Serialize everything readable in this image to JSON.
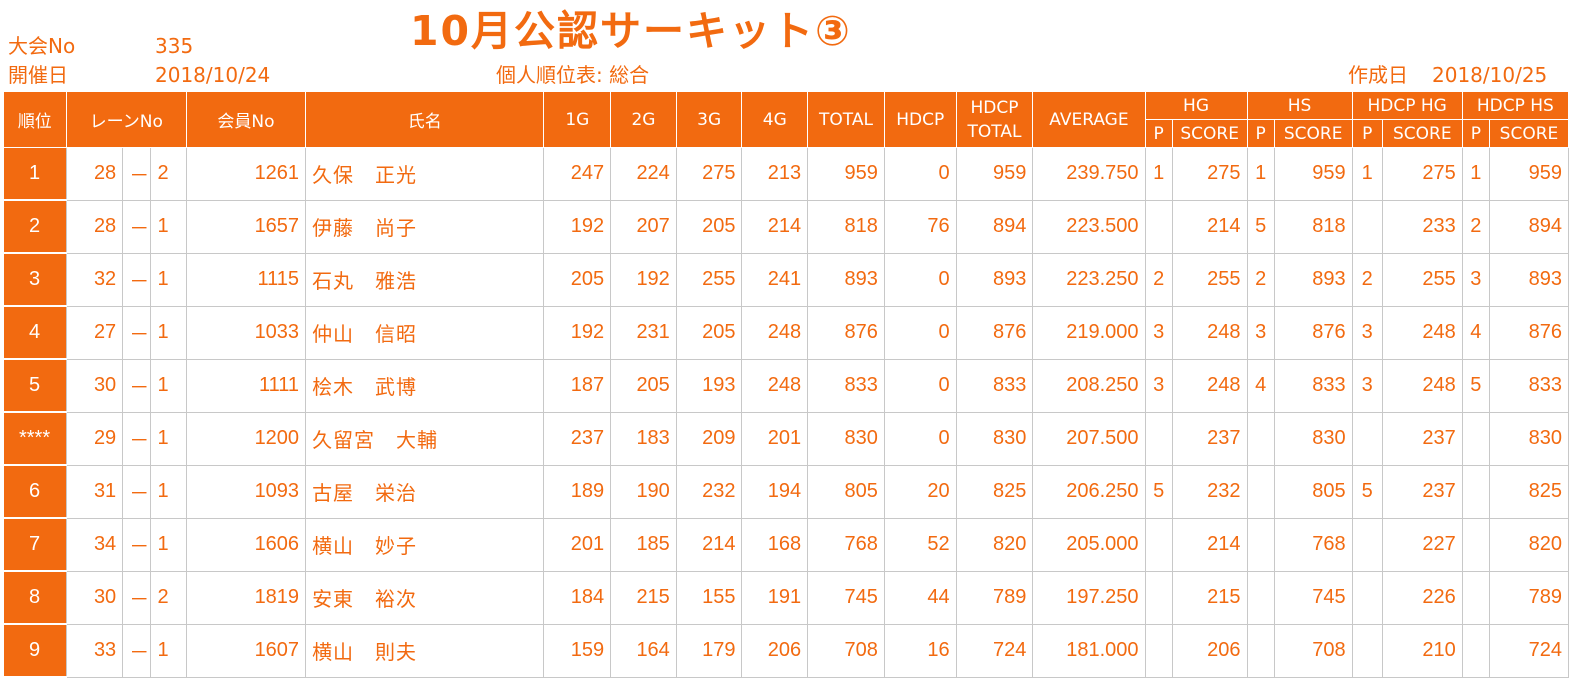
{
  "title": "10月公認サーキット③",
  "meta": {
    "tournament_label": "大会No",
    "tournament_no": "335",
    "date_label": "開催日",
    "date": "2018/10/24",
    "report_label": "個人順位表: 総合",
    "created_label": "作成日",
    "created_date": "2018/10/25"
  },
  "headers": {
    "rank": "順位",
    "lane": "レーンNo",
    "member": "会員No",
    "name": "氏名",
    "g1": "1G",
    "g2": "2G",
    "g3": "3G",
    "g4": "4G",
    "total": "TOTAL",
    "hdcp": "HDCP",
    "hdcp_total_1": "HDCP",
    "hdcp_total_2": "TOTAL",
    "average": "AVERAGE",
    "hg": "HG",
    "hs": "HS",
    "hdcp_hg": "HDCP HG",
    "hdcp_hs": "HDCP HS",
    "p": "P",
    "score": "SCORE"
  },
  "rows": [
    {
      "rank": "1",
      "lane_a": "28",
      "dash": "－",
      "lane_b": "2",
      "member": "1261",
      "name": "久保　正光",
      "g1": "247",
      "g2": "224",
      "g3": "275",
      "g4": "213",
      "total": "959",
      "hdcp": "0",
      "hdcp_total": "959",
      "average": "239.750",
      "hg_p": "1",
      "hg_score": "275",
      "hs_p": "1",
      "hs_score": "959",
      "hhg_p": "1",
      "hhg_score": "275",
      "hhs_p": "1",
      "hhs_score": "959"
    },
    {
      "rank": "2",
      "lane_a": "28",
      "dash": "－",
      "lane_b": "1",
      "member": "1657",
      "name": "伊藤　尚子",
      "g1": "192",
      "g2": "207",
      "g3": "205",
      "g4": "214",
      "total": "818",
      "hdcp": "76",
      "hdcp_total": "894",
      "average": "223.500",
      "hg_p": "",
      "hg_score": "214",
      "hs_p": "5",
      "hs_score": "818",
      "hhg_p": "",
      "hhg_score": "233",
      "hhs_p": "2",
      "hhs_score": "894"
    },
    {
      "rank": "3",
      "lane_a": "32",
      "dash": "－",
      "lane_b": "1",
      "member": "1115",
      "name": "石丸　雅浩",
      "g1": "205",
      "g2": "192",
      "g3": "255",
      "g4": "241",
      "total": "893",
      "hdcp": "0",
      "hdcp_total": "893",
      "average": "223.250",
      "hg_p": "2",
      "hg_score": "255",
      "hs_p": "2",
      "hs_score": "893",
      "hhg_p": "2",
      "hhg_score": "255",
      "hhs_p": "3",
      "hhs_score": "893"
    },
    {
      "rank": "4",
      "lane_a": "27",
      "dash": "－",
      "lane_b": "1",
      "member": "1033",
      "name": "仲山　信昭",
      "g1": "192",
      "g2": "231",
      "g3": "205",
      "g4": "248",
      "total": "876",
      "hdcp": "0",
      "hdcp_total": "876",
      "average": "219.000",
      "hg_p": "3",
      "hg_score": "248",
      "hs_p": "3",
      "hs_score": "876",
      "hhg_p": "3",
      "hhg_score": "248",
      "hhs_p": "4",
      "hhs_score": "876"
    },
    {
      "rank": "5",
      "lane_a": "30",
      "dash": "－",
      "lane_b": "1",
      "member": "1111",
      "name": "桧木　武博",
      "g1": "187",
      "g2": "205",
      "g3": "193",
      "g4": "248",
      "total": "833",
      "hdcp": "0",
      "hdcp_total": "833",
      "average": "208.250",
      "hg_p": "3",
      "hg_score": "248",
      "hs_p": "4",
      "hs_score": "833",
      "hhg_p": "3",
      "hhg_score": "248",
      "hhs_p": "5",
      "hhs_score": "833"
    },
    {
      "rank": "****",
      "lane_a": "29",
      "dash": "－",
      "lane_b": "1",
      "member": "1200",
      "name": "久留宮　大輔",
      "g1": "237",
      "g2": "183",
      "g3": "209",
      "g4": "201",
      "total": "830",
      "hdcp": "0",
      "hdcp_total": "830",
      "average": "207.500",
      "hg_p": "",
      "hg_score": "237",
      "hs_p": "",
      "hs_score": "830",
      "hhg_p": "",
      "hhg_score": "237",
      "hhs_p": "",
      "hhs_score": "830"
    },
    {
      "rank": "6",
      "lane_a": "31",
      "dash": "－",
      "lane_b": "1",
      "member": "1093",
      "name": "古屋　栄治",
      "g1": "189",
      "g2": "190",
      "g3": "232",
      "g4": "194",
      "total": "805",
      "hdcp": "20",
      "hdcp_total": "825",
      "average": "206.250",
      "hg_p": "5",
      "hg_score": "232",
      "hs_p": "",
      "hs_score": "805",
      "hhg_p": "5",
      "hhg_score": "237",
      "hhs_p": "",
      "hhs_score": "825"
    },
    {
      "rank": "7",
      "lane_a": "34",
      "dash": "－",
      "lane_b": "1",
      "member": "1606",
      "name": "横山　妙子",
      "g1": "201",
      "g2": "185",
      "g3": "214",
      "g4": "168",
      "total": "768",
      "hdcp": "52",
      "hdcp_total": "820",
      "average": "205.000",
      "hg_p": "",
      "hg_score": "214",
      "hs_p": "",
      "hs_score": "768",
      "hhg_p": "",
      "hhg_score": "227",
      "hhs_p": "",
      "hhs_score": "820"
    },
    {
      "rank": "8",
      "lane_a": "30",
      "dash": "－",
      "lane_b": "2",
      "member": "1819",
      "name": "安東　裕次",
      "g1": "184",
      "g2": "215",
      "g3": "155",
      "g4": "191",
      "total": "745",
      "hdcp": "44",
      "hdcp_total": "789",
      "average": "197.250",
      "hg_p": "",
      "hg_score": "215",
      "hs_p": "",
      "hs_score": "745",
      "hhg_p": "",
      "hhg_score": "226",
      "hhs_p": "",
      "hhs_score": "789"
    },
    {
      "rank": "9",
      "lane_a": "33",
      "dash": "－",
      "lane_b": "1",
      "member": "1607",
      "name": "横山　則夫",
      "g1": "159",
      "g2": "164",
      "g3": "179",
      "g4": "206",
      "total": "708",
      "hdcp": "16",
      "hdcp_total": "724",
      "average": "181.000",
      "hg_p": "",
      "hg_score": "206",
      "hs_p": "",
      "hs_score": "708",
      "hhg_p": "",
      "hhg_score": "210",
      "hhs_p": "",
      "hhs_score": "724"
    }
  ]
}
